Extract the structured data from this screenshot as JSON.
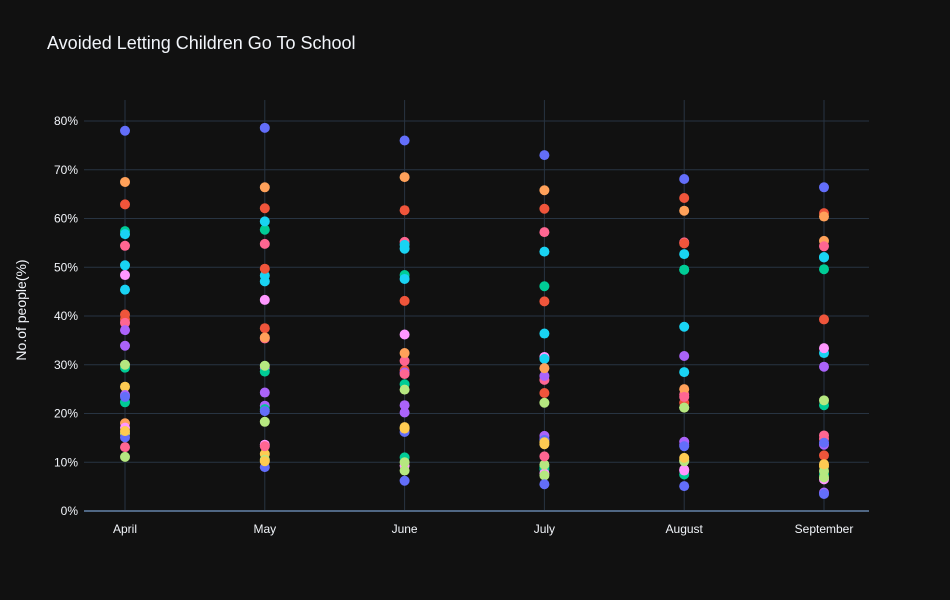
{
  "chart_data": {
    "type": "scatter",
    "title": "Avoided Letting Children Go To School",
    "xlabel": "",
    "ylabel": "No.of people(%)",
    "categories": [
      "April",
      "May",
      "June",
      "July",
      "August",
      "September"
    ],
    "ylim": [
      0,
      84
    ],
    "yticks": [
      0,
      10,
      20,
      30,
      40,
      50,
      60,
      70,
      80
    ],
    "ytick_suffix": "%",
    "grid": true,
    "legend": "none",
    "series": [
      {
        "color": "#636efa",
        "values": [
          78,
          78.6,
          76,
          73,
          68.1,
          66.4
        ]
      },
      {
        "color": "#ffa15a",
        "values": [
          67.5,
          66.4,
          68.5,
          65.8,
          61.6,
          55.4
        ]
      },
      {
        "color": "#ef553b",
        "values": [
          62.9,
          62.1,
          61.7,
          62,
          64.2,
          61.1
        ]
      },
      {
        "color": "#00cc96",
        "values": [
          57.4,
          57.7,
          48.4,
          46.1,
          49.5,
          49.6
        ]
      },
      {
        "color": "#19d3f3",
        "values": [
          56.8,
          59.4,
          53.8,
          53.2,
          52.7,
          52.1
        ]
      },
      {
        "color": "#ff6692",
        "values": [
          54.4,
          54.8,
          55.2,
          57.2,
          55.1,
          54.3
        ]
      },
      {
        "color": "#19d3f3",
        "values": [
          50.4,
          48.3,
          54.6,
          36.4,
          37.8,
          32.4
        ]
      },
      {
        "color": "#ff97ff",
        "values": [
          48.4,
          43.3,
          36.2,
          31.6,
          8.5,
          33.4
        ]
      },
      {
        "color": "#19d3f3",
        "values": [
          45.4,
          47.1,
          47.6,
          31.2,
          28.5,
          52
        ]
      },
      {
        "color": "#ef553b",
        "values": [
          40.3,
          49.7,
          43.1,
          43,
          54.9,
          39.3
        ]
      },
      {
        "color": "#ef553b",
        "values": [
          39.3,
          37.5,
          28.9,
          24.2,
          22.2,
          11.4
        ]
      },
      {
        "color": "#ff6692",
        "values": [
          38.6,
          35.4,
          30.8,
          26.9,
          23.9,
          15.5
        ]
      },
      {
        "color": "#ab63fa",
        "values": [
          37.1,
          29.3,
          20.2,
          15.4,
          31.8,
          29.6
        ]
      },
      {
        "color": "#ab63fa",
        "values": [
          33.9,
          24.3,
          21.7,
          14.7,
          14.2,
          13.6
        ]
      },
      {
        "color": "#00cc96",
        "values": [
          29.4,
          28.6,
          26,
          9.1,
          49.5,
          21.7
        ]
      },
      {
        "color": "#b6e880",
        "values": [
          30,
          29.8,
          24.9,
          22.2,
          21.2,
          22.7
        ]
      },
      {
        "color": "#fecb52",
        "values": [
          25.5,
          11.7,
          17.2,
          13.7,
          10.4,
          9.2
        ]
      },
      {
        "color": "#ab63fa",
        "values": [
          23.8,
          21.6,
          28.4,
          27.7,
          13.6,
          3.8
        ]
      },
      {
        "color": "#00cc96",
        "values": [
          22.3,
          20.9,
          11,
          8.6,
          7.5,
          7.5
        ]
      },
      {
        "color": "#ffa15a",
        "values": [
          18,
          35.6,
          32.4,
          29.3,
          25,
          60.4
        ]
      },
      {
        "color": "#ff97ff",
        "values": [
          17.1,
          13.6,
          9.3,
          7.7,
          8.3,
          6.5
        ]
      },
      {
        "color": "#b6e880",
        "values": [
          15.9,
          18.3,
          10,
          9.5,
          21.2,
          8.2
        ]
      },
      {
        "color": "#ff6692",
        "values": [
          13.1,
          13.3,
          28.1,
          11.2,
          23.4,
          14.8
        ]
      },
      {
        "color": "#b6e880",
        "values": [
          11.1,
          10.5,
          8.3,
          7.3,
          10.2,
          6.9
        ]
      },
      {
        "color": "#636efa",
        "values": [
          15.1,
          9,
          6.2,
          5.5,
          5.1,
          3.5
        ]
      },
      {
        "color": "#636efa",
        "values": [
          23.4,
          20.5,
          16.2,
          14.6,
          13.3,
          14
        ]
      },
      {
        "color": "#fecb52",
        "values": [
          16.4,
          10.2,
          16.9,
          14.1,
          10.9,
          9.6
        ]
      }
    ]
  }
}
